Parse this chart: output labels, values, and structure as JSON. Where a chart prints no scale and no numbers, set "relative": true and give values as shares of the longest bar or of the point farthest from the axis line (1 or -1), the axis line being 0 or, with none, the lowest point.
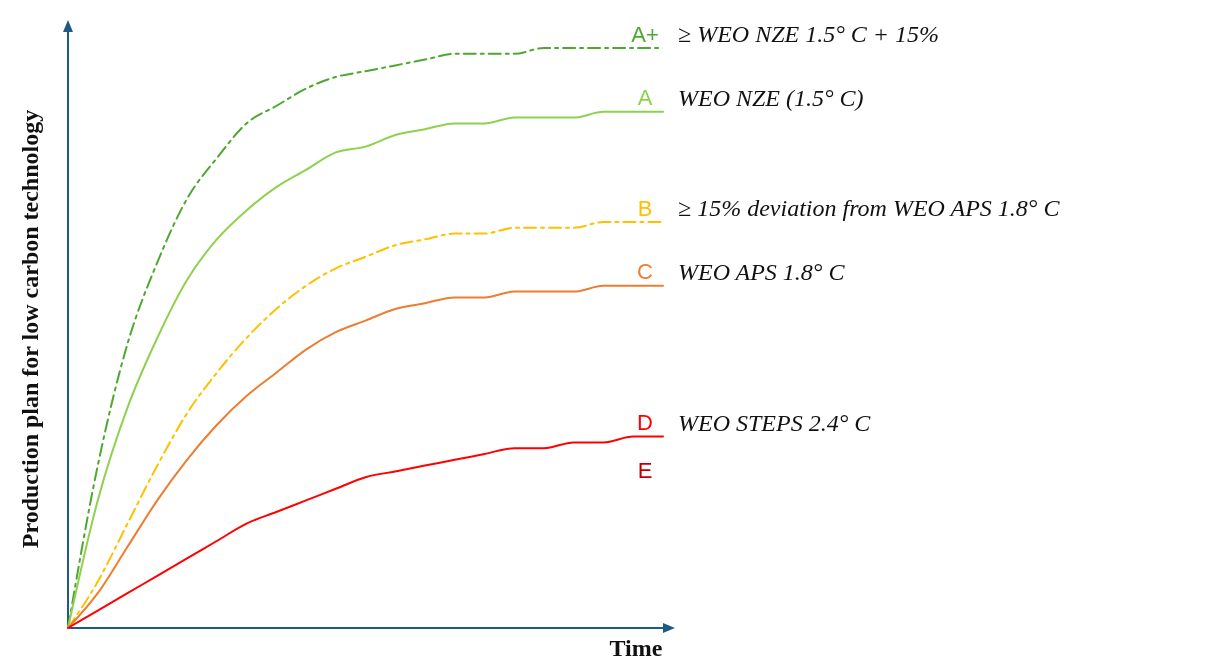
{
  "chart_data": {
    "type": "line",
    "relative": true,
    "xlabel": "Time",
    "ylabel": "Production plan for low carbon technology",
    "categories": [
      null,
      null,
      null,
      null,
      null,
      null,
      null,
      null,
      null,
      null,
      null,
      null,
      null,
      null,
      null,
      null,
      null,
      null,
      null,
      null,
      null
    ],
    "series": [
      {
        "name": "A+",
        "color": "#4ea72e",
        "line_style": "dashed",
        "values": [
          0,
          0.28,
          0.49,
          0.63,
          0.74,
          0.81,
          0.87,
          0.9,
          0.93,
          0.95,
          0.96,
          0.97,
          0.98,
          0.99,
          0.99,
          0.99,
          1,
          1,
          1,
          1,
          1
        ]
      },
      {
        "name": "A",
        "color": "#8fd14f",
        "line_style": "solid",
        "values": [
          0,
          0.22,
          0.38,
          0.5,
          0.6,
          0.67,
          0.72,
          0.76,
          0.79,
          0.82,
          0.83,
          0.85,
          0.86,
          0.87,
          0.87,
          0.88,
          0.88,
          0.88,
          0.89,
          0.89,
          0.89
        ]
      },
      {
        "name": "B",
        "color": "#ffc000",
        "line_style": "dashed",
        "values": [
          0,
          0.08,
          0.18,
          0.28,
          0.37,
          0.44,
          0.5,
          0.55,
          0.59,
          0.62,
          0.64,
          0.66,
          0.67,
          0.68,
          0.68,
          0.69,
          0.69,
          0.69,
          0.7,
          0.7,
          0.7
        ]
      },
      {
        "name": "C",
        "color": "#ed7d31",
        "line_style": "solid",
        "values": [
          0,
          0.06,
          0.14,
          0.22,
          0.29,
          0.35,
          0.4,
          0.44,
          0.48,
          0.51,
          0.53,
          0.55,
          0.56,
          0.57,
          0.57,
          0.58,
          0.58,
          0.58,
          0.59,
          0.59,
          0.59
        ]
      },
      {
        "name": "D",
        "color": "#ff0000",
        "line_style": "solid",
        "values": [
          0,
          0.03,
          0.06,
          0.09,
          0.12,
          0.15,
          0.18,
          0.2,
          0.22,
          0.24,
          0.26,
          0.27,
          0.28,
          0.29,
          0.3,
          0.31,
          0.31,
          0.32,
          0.32,
          0.33,
          0.33
        ]
      }
    ],
    "annotations": [
      "≥ WEO NZE 1.5° C + 15%",
      "WEO NZE (1.5° C)",
      "≥ 15% deviation from WEO APS 1.8° C",
      "WEO APS 1.8° C",
      "WEO STEPS 2.4° C",
      "E"
    ],
    "grid": false
  }
}
